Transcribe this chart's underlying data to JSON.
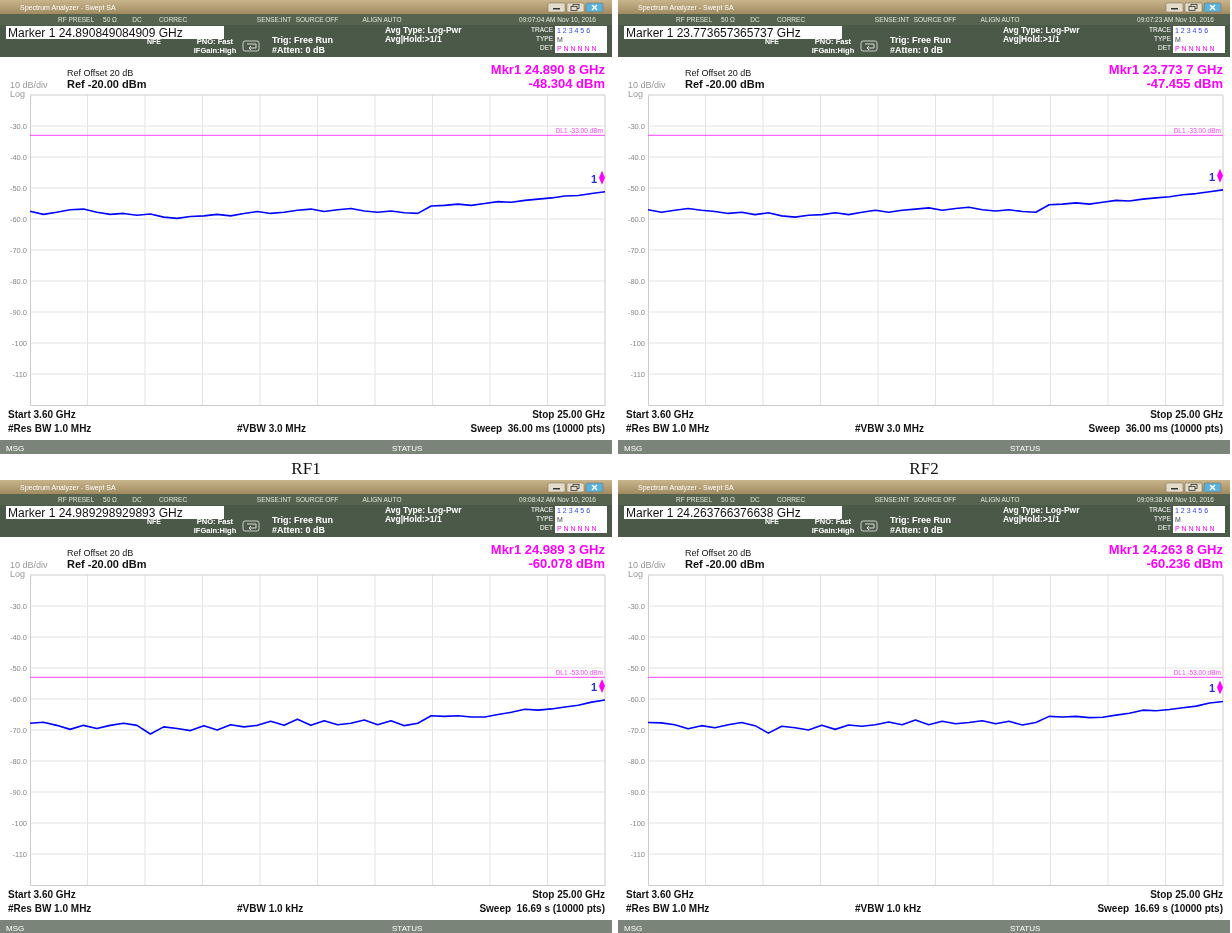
{
  "chart_data": [
    {
      "type": "line",
      "categories": [
        null,
        null,
        null,
        null,
        null,
        null,
        null,
        null,
        null,
        null,
        null,
        null,
        null,
        null,
        null,
        null,
        null,
        null,
        null,
        null,
        null,
        null,
        null,
        null,
        null,
        null,
        null,
        null,
        null,
        null,
        null,
        null,
        null,
        null,
        null,
        null,
        null,
        null,
        null,
        null,
        null,
        null,
        null,
        null
      ],
      "ylim": [
        -120,
        -20
      ],
      "yticks": [
        {
          "value": -30,
          "label": "-30.0"
        },
        {
          "value": -40,
          "label": "-40.0"
        },
        {
          "value": -50,
          "label": "-50.0"
        },
        {
          "value": -60,
          "label": "-60.0"
        },
        {
          "value": -70,
          "label": "-70.0"
        },
        {
          "value": -80,
          "label": "-80.0"
        },
        {
          "value": -90,
          "label": "-90.0"
        },
        {
          "value": -100,
          "label": "-100"
        },
        {
          "value": -110,
          "label": "-110"
        }
      ],
      "tick_labels": "y",
      "grid": true,
      "ref_lines": [
        {
          "axis": "y",
          "value": -33,
          "label": "DL1 -33.00 dBm",
          "color": "#ff44ff"
        }
      ],
      "series": [
        {
          "color": "#0000ff",
          "values": [
            -57.5,
            -58.5,
            -57.8,
            -57,
            -56.8,
            -57.8,
            -58.5,
            -58.2,
            -58.8,
            -58.4,
            -59.4,
            -59.8,
            -59.2,
            -59,
            -58.5,
            -59,
            -58.2,
            -57.6,
            -58.2,
            -57.8,
            -57.2,
            -56.8,
            -57.6,
            -57,
            -56.6,
            -57.4,
            -57.8,
            -57.4,
            -58,
            -58.2,
            -55.8,
            -55.6,
            -55.2,
            -55.6,
            -55,
            -54.4,
            -54.6,
            -54,
            -53.6,
            -53.2,
            -52.6,
            -52.4,
            -51.8,
            -51.2
          ]
        }
      ],
      "annotations": [
        "Spectrum Analyzer - Swept SA",
        "RF PRESEL",
        "50 Ω",
        "DC",
        "CORREC",
        "SENSE:INT",
        "SOURCE OFF",
        "ALIGN AUTO",
        "09:07:04 AM Nov 10, 2016",
        "Marker 1 24.890849084909 GHz",
        "NFE",
        "PNO: Fast",
        "IFGain:High",
        "Trig: Free Run",
        "#Atten: 0 dB",
        "Avg Type: Log-Pwr",
        "Avg|Hold:>1/1",
        "TRACE",
        "TYPE",
        "DET",
        "1 2 3 4 5 6",
        "M",
        "P N N N N N",
        "Ref Offset 20 dB",
        "Ref -20.00 dBm",
        "10 dB/div",
        "Log",
        "Mkr1 24.890 8 GHz",
        "-48.304 dBm",
        "Start 3.60 GHz",
        "#Res BW 1.0 MHz",
        "#VBW 3.0 MHz",
        "Stop 25.00 GHz",
        "Sweep  36.00 ms (10000 pts)",
        "MSG",
        "STATUS",
        "RF1",
        "1"
      ]
    },
    {
      "type": "line",
      "categories": [
        null,
        null,
        null,
        null,
        null,
        null,
        null,
        null,
        null,
        null,
        null,
        null,
        null,
        null,
        null,
        null,
        null,
        null,
        null,
        null,
        null,
        null,
        null,
        null,
        null,
        null,
        null,
        null,
        null,
        null,
        null,
        null,
        null,
        null,
        null,
        null,
        null,
        null,
        null,
        null,
        null,
        null,
        null,
        null
      ],
      "ylim": [
        -120,
        -20
      ],
      "yticks": [
        {
          "value": -30,
          "label": "-30.0"
        },
        {
          "value": -40,
          "label": "-40.0"
        },
        {
          "value": -50,
          "label": "-50.0"
        },
        {
          "value": -60,
          "label": "-60.0"
        },
        {
          "value": -70,
          "label": "-70.0"
        },
        {
          "value": -80,
          "label": "-80.0"
        },
        {
          "value": -90,
          "label": "-90.0"
        },
        {
          "value": -100,
          "label": "-100"
        },
        {
          "value": -110,
          "label": "-110"
        }
      ],
      "tick_labels": "y",
      "grid": true,
      "ref_lines": [
        {
          "axis": "y",
          "value": -33,
          "label": "DL1 -33.00 dBm",
          "color": "#ff44ff"
        }
      ],
      "series": [
        {
          "color": "#0000ff",
          "values": [
            -57,
            -57.8,
            -57.2,
            -56.6,
            -57.2,
            -57.6,
            -58.2,
            -57.8,
            -58.6,
            -58,
            -59,
            -59.4,
            -58.8,
            -58.6,
            -58,
            -58.6,
            -57.8,
            -57.2,
            -57.8,
            -57.2,
            -56.8,
            -56.4,
            -57.2,
            -56.6,
            -56.2,
            -57,
            -57.4,
            -57,
            -57.6,
            -57.8,
            -55.4,
            -55.2,
            -54.8,
            -55.2,
            -54.6,
            -54,
            -54.2,
            -53.6,
            -53.2,
            -52.8,
            -52.2,
            -51.8,
            -51.2,
            -50.6
          ]
        }
      ],
      "annotations": [
        "Spectrum Analyzer - Swept SA",
        "RF PRESEL",
        "50 Ω",
        "DC",
        "CORREC",
        "SENSE:INT",
        "SOURCE OFF",
        "ALIGN AUTO",
        "09:07:23 AM Nov 10, 2016",
        "Marker 1 23.773657365737 GHz",
        "NFE",
        "PNO: Fast",
        "IFGain:High",
        "Trig: Free Run",
        "#Atten: 0 dB",
        "Avg Type: Log-Pwr",
        "Avg|Hold:>1/1",
        "TRACE",
        "TYPE",
        "DET",
        "1 2 3 4 5 6",
        "M",
        "P N N N N N",
        "Ref Offset 20 dB",
        "Ref -20.00 dBm",
        "10 dB/div",
        "Log",
        "Mkr1 23.773 7 GHz",
        "-47.455 dBm",
        "Start 3.60 GHz",
        "#Res BW 1.0 MHz",
        "#VBW 3.0 MHz",
        "Stop 25.00 GHz",
        "Sweep  36.00 ms (10000 pts)",
        "MSG",
        "STATUS",
        "RF2",
        "1"
      ]
    },
    {
      "type": "line",
      "categories": [
        null,
        null,
        null,
        null,
        null,
        null,
        null,
        null,
        null,
        null,
        null,
        null,
        null,
        null,
        null,
        null,
        null,
        null,
        null,
        null,
        null,
        null,
        null,
        null,
        null,
        null,
        null,
        null,
        null,
        null,
        null,
        null,
        null,
        null,
        null,
        null,
        null,
        null,
        null,
        null,
        null,
        null,
        null,
        null
      ],
      "ylim": [
        -120,
        -20
      ],
      "yticks": [
        {
          "value": -30,
          "label": "-30.0"
        },
        {
          "value": -40,
          "label": "-40.0"
        },
        {
          "value": -50,
          "label": "-50.0"
        },
        {
          "value": -60,
          "label": "-60.0"
        },
        {
          "value": -70,
          "label": "-70.0"
        },
        {
          "value": -80,
          "label": "-80.0"
        },
        {
          "value": -90,
          "label": "-90.0"
        },
        {
          "value": -100,
          "label": "-100"
        },
        {
          "value": -110,
          "label": "-110"
        }
      ],
      "tick_labels": "y",
      "grid": true,
      "ref_lines": [
        {
          "axis": "y",
          "value": -53,
          "label": "DL1 -53.00 dBm",
          "color": "#ff44ff"
        }
      ],
      "series": [
        {
          "color": "#0000ff",
          "values": [
            -67.8,
            -67.5,
            -68.5,
            -69.8,
            -68.5,
            -69.5,
            -68.5,
            -67.8,
            -68.5,
            -71.3,
            -69,
            -69.5,
            -70.2,
            -68.6,
            -70,
            -68.3,
            -69,
            -68.5,
            -67.2,
            -68.5,
            -66.5,
            -68.5,
            -67,
            -68.3,
            -67.8,
            -66.8,
            -68.3,
            -67,
            -68.6,
            -67.8,
            -65.4,
            -65.6,
            -65.4,
            -65.8,
            -65.8,
            -65,
            -64.3,
            -63.3,
            -63.6,
            -63.2,
            -62.6,
            -62,
            -61,
            -60.3
          ]
        }
      ],
      "annotations": [
        "Spectrum Analyzer - Swept SA",
        "RF PRESEL",
        "50 Ω",
        "DC",
        "CORREC",
        "SENSE:INT",
        "SOURCE OFF",
        "ALIGN AUTO",
        "09:08:42 AM Nov 10, 2016",
        "Marker 1 24.989298929893 GHz",
        "NFE",
        "PNO: Fast",
        "IFGain:High",
        "Trig: Free Run",
        "#Atten: 0 dB",
        "Avg Type: Log-Pwr",
        "Avg|Hold:>1/1",
        "TRACE",
        "TYPE",
        "DET",
        "1 2 3 4 5 6",
        "M",
        "P N N N N N",
        "Ref Offset 20 dB",
        "Ref -20.00 dBm",
        "10 dB/div",
        "Log",
        "Mkr1 24.989 3 GHz",
        "-60.078 dBm",
        "Start 3.60 GHz",
        "#Res BW 1.0 MHz",
        "#VBW 1.0 kHz",
        "Stop 25.00 GHz",
        "Sweep  16.69 s (10000 pts)",
        "MSG",
        "STATUS",
        null,
        "1"
      ]
    },
    {
      "type": "line",
      "categories": [
        null,
        null,
        null,
        null,
        null,
        null,
        null,
        null,
        null,
        null,
        null,
        null,
        null,
        null,
        null,
        null,
        null,
        null,
        null,
        null,
        null,
        null,
        null,
        null,
        null,
        null,
        null,
        null,
        null,
        null,
        null,
        null,
        null,
        null,
        null,
        null,
        null,
        null,
        null,
        null,
        null,
        null,
        null,
        null
      ],
      "ylim": [
        -120,
        -20
      ],
      "yticks": [
        {
          "value": -30,
          "label": "-30.0"
        },
        {
          "value": -40,
          "label": "-40.0"
        },
        {
          "value": -50,
          "label": "-50.0"
        },
        {
          "value": -60,
          "label": "-60.0"
        },
        {
          "value": -70,
          "label": "-70.0"
        },
        {
          "value": -80,
          "label": "-80.0"
        },
        {
          "value": -90,
          "label": "-90.0"
        },
        {
          "value": -100,
          "label": "-100"
        },
        {
          "value": -110,
          "label": "-110"
        }
      ],
      "tick_labels": "y",
      "grid": true,
      "ref_lines": [
        {
          "axis": "y",
          "value": -53,
          "label": "DL1 -53.00 dBm",
          "color": "#ff44ff"
        }
      ],
      "series": [
        {
          "color": "#0000ff",
          "values": [
            -67.6,
            -67.7,
            -68.3,
            -69.6,
            -68.6,
            -69.3,
            -68.3,
            -67.6,
            -68.6,
            -71,
            -68.8,
            -69.3,
            -70,
            -68.5,
            -69.8,
            -68.4,
            -68.8,
            -68.3,
            -67.4,
            -68.3,
            -66.8,
            -68.3,
            -67.2,
            -68,
            -67.6,
            -67,
            -68,
            -67.2,
            -68.4,
            -67.6,
            -65.6,
            -65.8,
            -65.6,
            -66,
            -65.9,
            -65.2,
            -64.6,
            -63.6,
            -63.8,
            -63.4,
            -62.8,
            -62.3,
            -61.3,
            -60.8
          ]
        }
      ],
      "annotations": [
        "Spectrum Analyzer - Swept SA",
        "RF PRESEL",
        "50 Ω",
        "DC",
        "CORREC",
        "SENSE:INT",
        "SOURCE OFF",
        "ALIGN AUTO",
        "09:09:38 AM Nov 10, 2016",
        "Marker 1 24.263766376638 GHz",
        "NFE",
        "PNO: Fast",
        "IFGain:High",
        "Trig: Free Run",
        "#Atten: 0 dB",
        "Avg Type: Log-Pwr",
        "Avg|Hold:>1/1",
        "TRACE",
        "TYPE",
        "DET",
        "1 2 3 4 5 6",
        "M",
        "P N N N N N",
        "Ref Offset 20 dB",
        "Ref -20.00 dBm",
        "10 dB/div",
        "Log",
        "Mkr1 24.263 8 GHz",
        "-60.236 dBm",
        "Start 3.60 GHz",
        "#Res BW 1.0 MHz",
        "#VBW 1.0 kHz",
        "Stop 25.00 GHz",
        "Sweep  16.69 s (10000 pts)",
        "MSG",
        "STATUS",
        null,
        "1"
      ]
    }
  ]
}
